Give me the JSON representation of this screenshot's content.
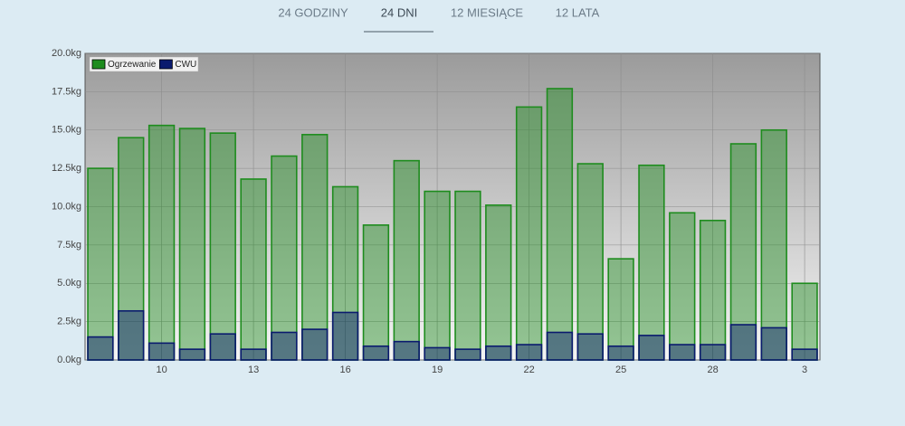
{
  "tabs": [
    "24 GODZINY",
    "24 DNI",
    "12 MIESIĄCE",
    "12 LATA"
  ],
  "chart_data": {
    "type": "bar",
    "categories": [
      null,
      null,
      "10",
      null,
      null,
      "13",
      null,
      null,
      "16",
      null,
      null,
      "19",
      null,
      null,
      "22",
      null,
      null,
      "25",
      null,
      null,
      "28",
      null,
      null,
      "3"
    ],
    "series": [
      {
        "name": "Ogrzewanie",
        "color": "#1e8c1e",
        "values": [
          12.5,
          14.5,
          15.3,
          15.1,
          14.8,
          11.8,
          13.3,
          14.7,
          11.3,
          8.8,
          13.0,
          11.0,
          11.0,
          10.1,
          16.5,
          17.7,
          12.8,
          6.6,
          12.7,
          9.6,
          9.1,
          14.1,
          15.0,
          5.0
        ]
      },
      {
        "name": "CWU",
        "color": "#0a1a6e",
        "values": [
          1.5,
          3.2,
          1.1,
          0.7,
          1.7,
          0.7,
          1.8,
          2.0,
          3.1,
          0.9,
          1.2,
          0.8,
          0.7,
          0.9,
          1.0,
          1.8,
          1.7,
          0.9,
          1.6,
          1.0,
          1.0,
          2.3,
          2.1,
          0.7
        ]
      }
    ],
    "ylim": [
      0,
      20
    ],
    "yticks": [
      {
        "value": 0,
        "label": "0.0kg"
      },
      {
        "value": 2.5,
        "label": "2.5kg"
      },
      {
        "value": 5,
        "label": "5.0kg"
      },
      {
        "value": 7.5,
        "label": "7.5kg"
      },
      {
        "value": 10,
        "label": "10.0kg"
      },
      {
        "value": 12.5,
        "label": "12.5kg"
      },
      {
        "value": 15,
        "label": "15.0kg"
      },
      {
        "value": 17.5,
        "label": "17.5kg"
      },
      {
        "value": 20,
        "label": "20.0kg"
      }
    ],
    "grid": true,
    "legend": "top-left"
  }
}
